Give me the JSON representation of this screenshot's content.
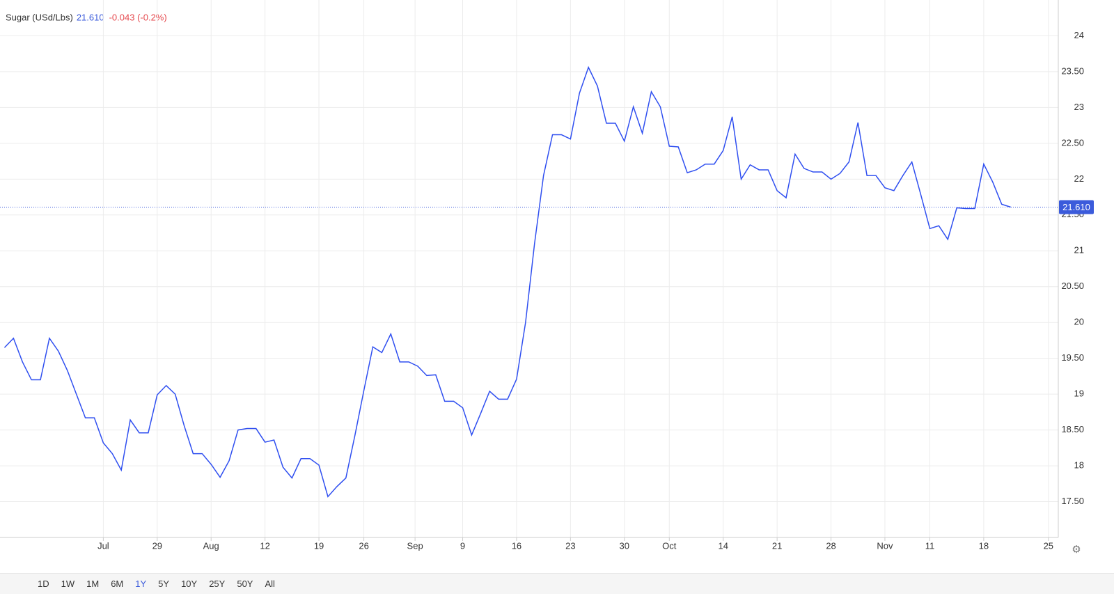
{
  "chart_data": {
    "type": "line",
    "title": "Sugar (USd/Lbs)",
    "price": {
      "value": 21.61,
      "label": "21.610"
    },
    "change": "-0.043 (-0.2%)",
    "series": [
      {
        "name": "Sugar",
        "color": "#2f4ff0",
        "values": [
          19.65,
          19.78,
          19.45,
          19.2,
          19.2,
          19.78,
          19.6,
          19.33,
          19.0,
          18.67,
          18.67,
          18.32,
          18.17,
          17.94,
          18.64,
          18.46,
          18.46,
          18.99,
          19.12,
          19.0,
          18.56,
          18.17,
          18.17,
          18.02,
          17.84,
          18.07,
          18.5,
          18.52,
          18.52,
          18.33,
          18.36,
          17.98,
          17.83,
          18.1,
          18.1,
          18.01,
          17.57,
          17.71,
          17.83,
          18.42,
          19.05,
          19.66,
          19.58,
          19.84,
          19.45,
          19.45,
          19.39,
          19.26,
          19.27,
          18.9,
          18.9,
          18.81,
          18.43,
          18.73,
          19.04,
          18.93,
          18.93,
          19.21,
          20.0,
          21.1,
          22.05,
          22.62,
          22.62,
          22.56,
          23.2,
          23.56,
          23.3,
          22.78,
          22.78,
          22.53,
          23.01,
          22.64,
          23.22,
          23.01,
          22.46,
          22.45,
          22.09,
          22.13,
          22.21,
          22.21,
          22.4,
          22.87,
          22.0,
          22.2,
          22.13,
          22.13,
          21.84,
          21.74,
          22.35,
          22.15,
          22.1,
          22.1,
          22.0,
          22.08,
          22.24,
          22.79,
          22.05,
          22.05,
          21.88,
          21.84,
          22.05,
          22.24,
          21.78,
          21.31,
          21.35,
          21.16,
          21.6,
          21.59,
          21.59,
          22.21,
          21.96,
          21.65,
          21.61
        ]
      }
    ],
    "xlim": [
      -0.5,
      117.3
    ],
    "xticks": [
      {
        "value": 11,
        "label": "Jul"
      },
      {
        "value": 17,
        "label": "29"
      },
      {
        "value": 23,
        "label": "Aug"
      },
      {
        "value": 29,
        "label": "12"
      },
      {
        "value": 35,
        "label": "19"
      },
      {
        "value": 40,
        "label": "26"
      },
      {
        "value": 45.7,
        "label": "Sep"
      },
      {
        "value": 51,
        "label": "9"
      },
      {
        "value": 57,
        "label": "16"
      },
      {
        "value": 63,
        "label": "23"
      },
      {
        "value": 69,
        "label": "30"
      },
      {
        "value": 74,
        "label": "Oct"
      },
      {
        "value": 80,
        "label": "14"
      },
      {
        "value": 86,
        "label": "21"
      },
      {
        "value": 92,
        "label": "28"
      },
      {
        "value": 98,
        "label": "Nov"
      },
      {
        "value": 103,
        "label": "11"
      },
      {
        "value": 109,
        "label": "18"
      },
      {
        "value": 116.2,
        "label": "25"
      }
    ],
    "ylim": [
      17.0,
      24.5
    ],
    "yticks": [
      {
        "value": 17.5,
        "label": "17.50"
      },
      18,
      {
        "value": 18.5,
        "label": "18.50"
      },
      19,
      {
        "value": 19.5,
        "label": "19.50"
      },
      20,
      {
        "value": 20.5,
        "label": "20.50"
      },
      21,
      {
        "value": 21.5,
        "label": "21.50"
      },
      22,
      {
        "value": 22.5,
        "label": "22.50"
      },
      23,
      {
        "value": 23.5,
        "label": "23.50"
      },
      24
    ],
    "grid": true
  },
  "range_buttons": [
    "1D",
    "1W",
    "1M",
    "6M",
    "1Y",
    "5Y",
    "10Y",
    "25Y",
    "50Y",
    "All"
  ],
  "active_range": 4
}
